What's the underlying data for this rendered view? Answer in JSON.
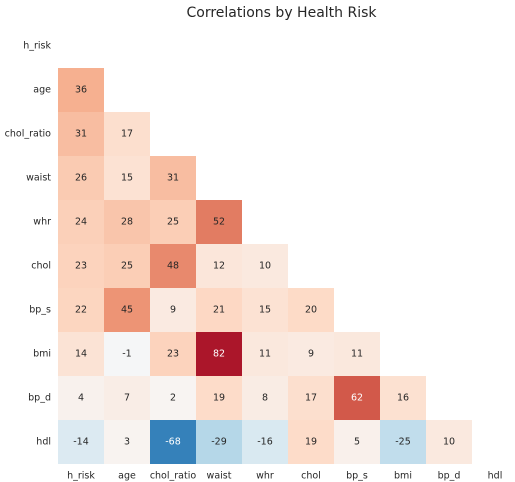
{
  "chart_data": {
    "type": "heatmap",
    "title": "Correlations by Health Risk",
    "xlabel": "",
    "ylabel": "",
    "colormap": "diverging red-blue (RdBu_r)",
    "value_range": [
      -100,
      100
    ],
    "masked": "upper triangle including diagonal",
    "grid": false,
    "row_labels": [
      "h_risk",
      "age",
      "chol_ratio",
      "waist",
      "whr",
      "chol",
      "bp_s",
      "bmi",
      "bp_d",
      "hdl"
    ],
    "col_labels": [
      "h_risk",
      "age",
      "chol_ratio",
      "waist",
      "whr",
      "chol",
      "bp_s",
      "bmi",
      "bp_d",
      "hdl"
    ],
    "values": [
      [],
      [
        36
      ],
      [
        31,
        17
      ],
      [
        26,
        15,
        31
      ],
      [
        24,
        28,
        25,
        52
      ],
      [
        23,
        25,
        48,
        12,
        10
      ],
      [
        22,
        45,
        9,
        21,
        15,
        20
      ],
      [
        14,
        -1,
        23,
        82,
        11,
        9,
        11
      ],
      [
        4,
        7,
        2,
        19,
        8,
        17,
        62,
        16
      ],
      [
        -14,
        3,
        -68,
        -29,
        -16,
        19,
        5,
        -25,
        10
      ]
    ]
  }
}
